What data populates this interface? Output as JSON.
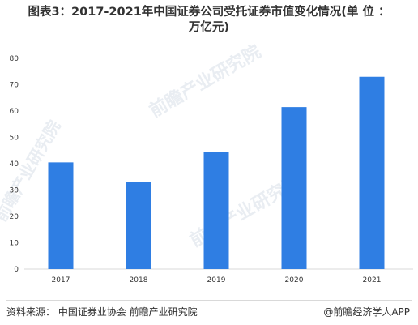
{
  "chart_data": {
    "type": "bar",
    "title_line1": "图表3：2017-2021年中国证券公司受托证券市值变化情况(单 位 ：",
    "title_line2": "万亿元)",
    "categories": [
      "2017",
      "2018",
      "2019",
      "2020",
      "2021"
    ],
    "values": [
      40.5,
      33,
      44.5,
      61.5,
      73
    ],
    "ylim": [
      0,
      80
    ],
    "yticks": [
      0,
      10,
      20,
      30,
      40,
      50,
      60,
      70,
      80
    ],
    "bar_color": "#2f7ee3",
    "grid": false
  },
  "footer": {
    "source": "资料来源： 中国证券业协会 前瞻产业研究院",
    "brand": "@前瞻经济学人APP"
  },
  "watermark": {
    "text": "前瞻产业研究院"
  }
}
